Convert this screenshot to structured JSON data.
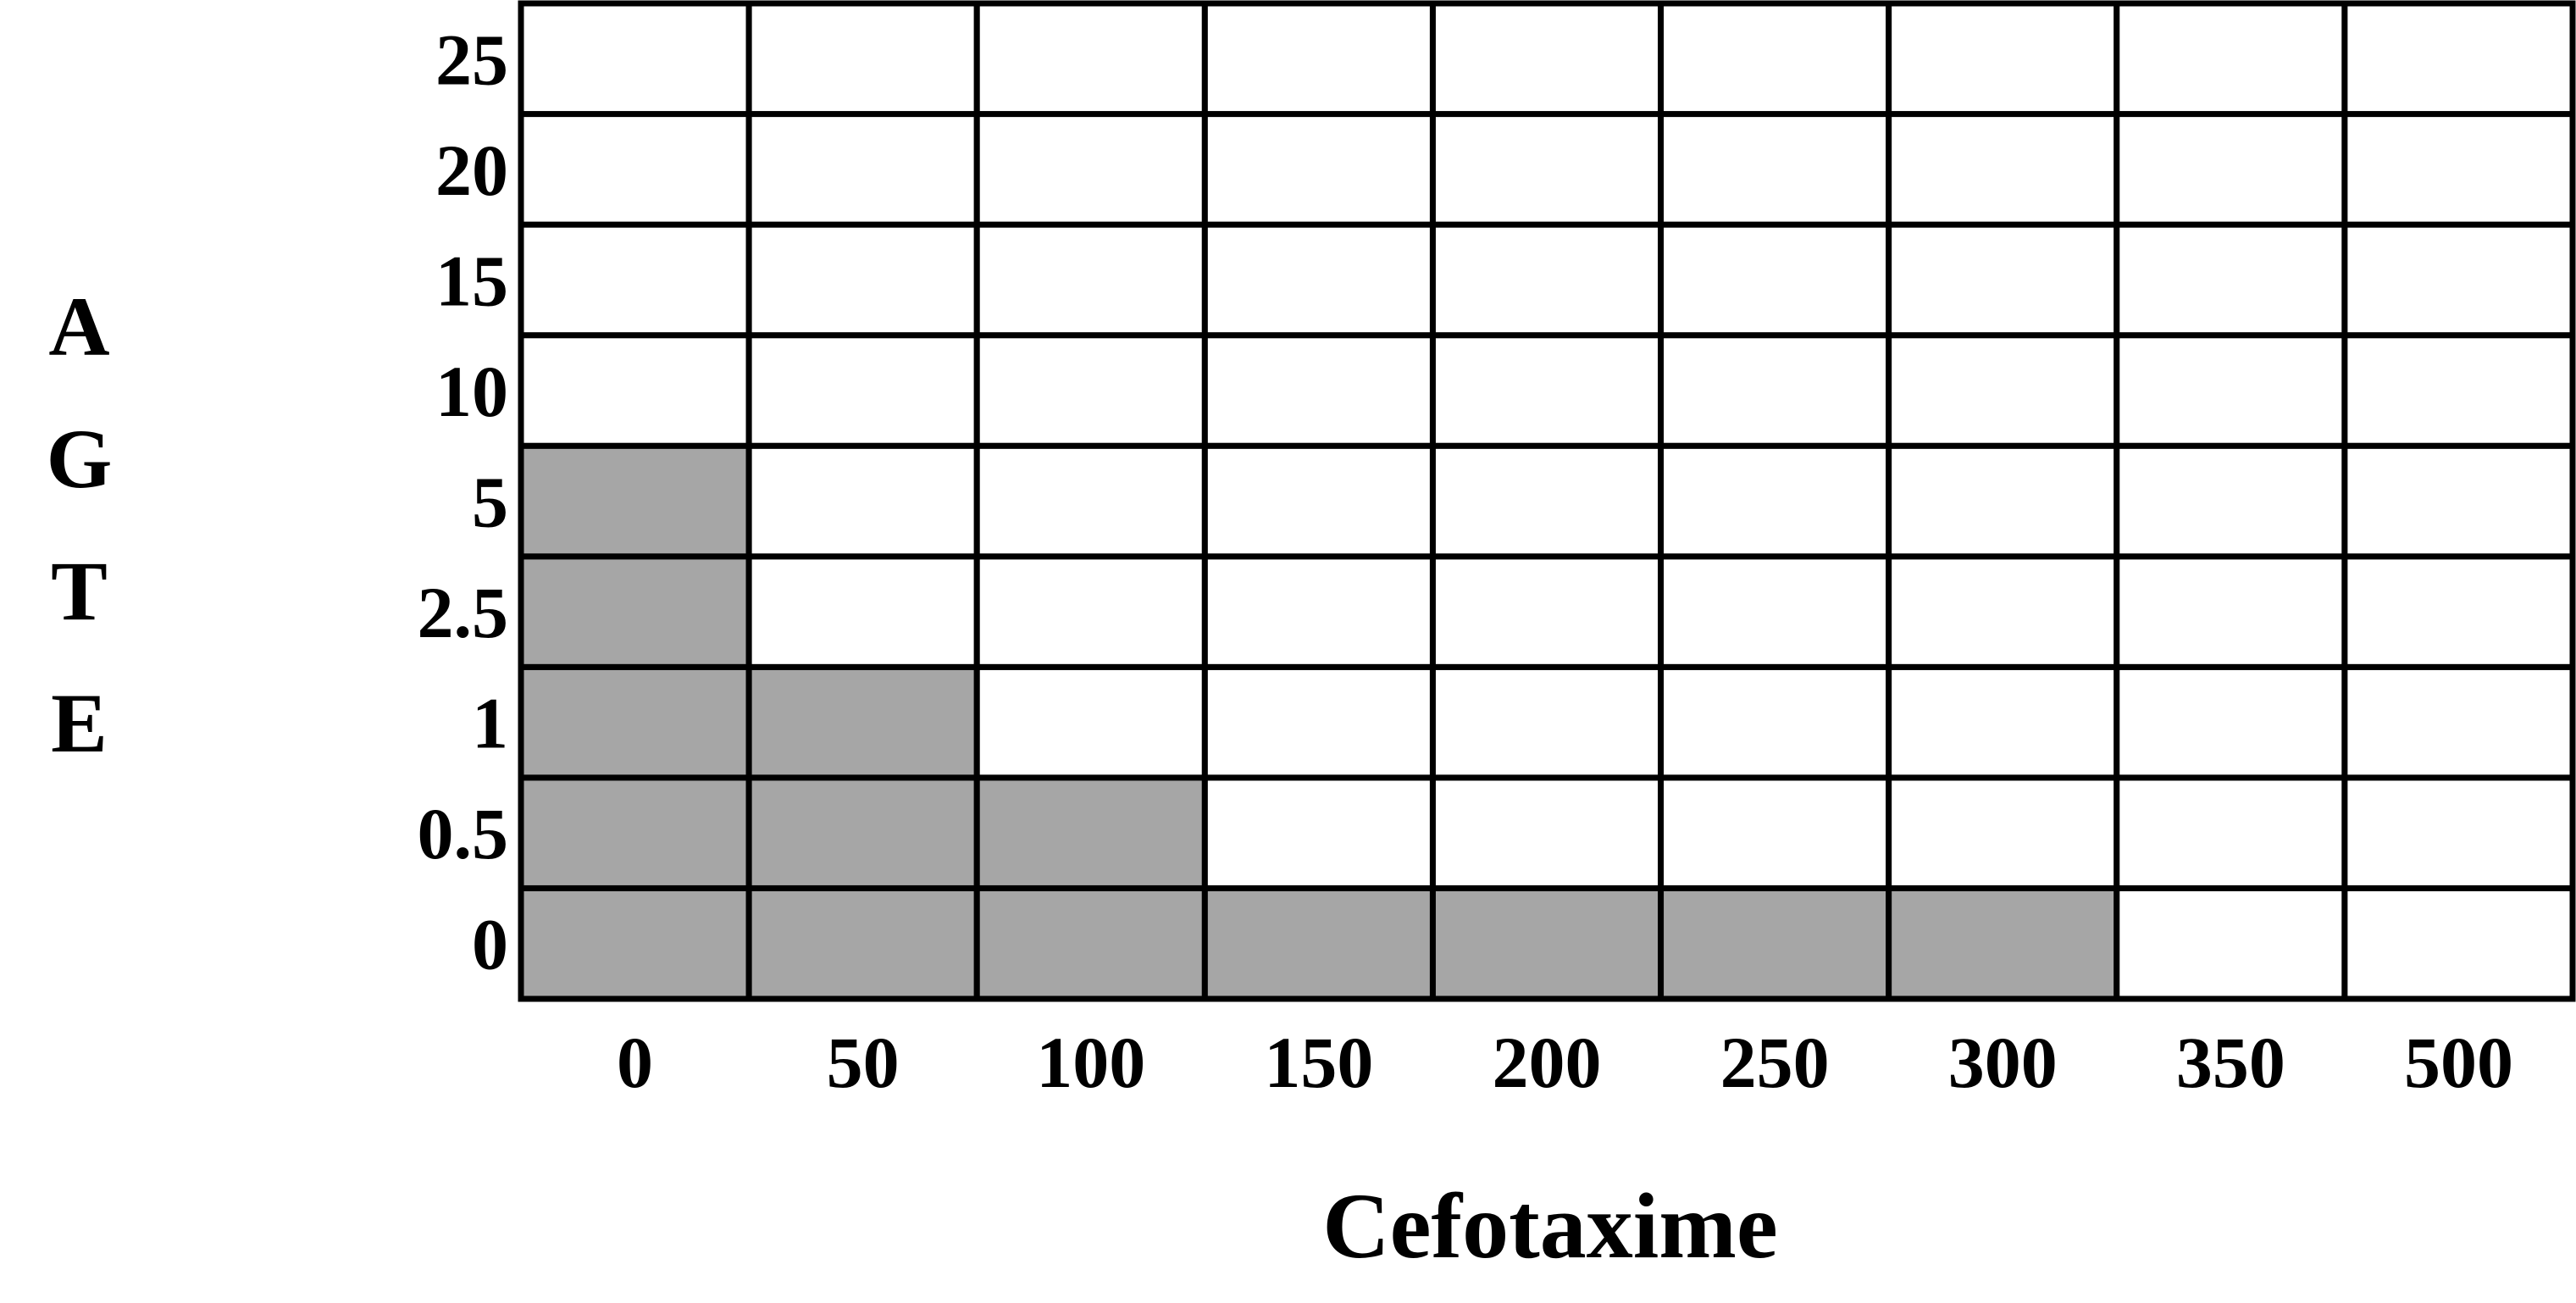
{
  "chart_data": {
    "type": "heatmap",
    "title": "",
    "xlabel": "Cefotaxime",
    "ylabel": "AGTE",
    "ylabel_letters": [
      "A",
      "G",
      "T",
      "E"
    ],
    "x_categories": [
      "0",
      "50",
      "100",
      "150",
      "200",
      "250",
      "300",
      "350",
      "500"
    ],
    "y_categories": [
      "0",
      "0.5",
      "1",
      "2.5",
      "5",
      "10",
      "15",
      "20",
      "25"
    ],
    "values": [
      [
        1,
        1,
        1,
        1,
        1,
        1,
        1,
        0,
        0
      ],
      [
        1,
        1,
        1,
        0,
        0,
        0,
        0,
        0,
        0
      ],
      [
        1,
        1,
        0,
        0,
        0,
        0,
        0,
        0,
        0
      ],
      [
        1,
        0,
        0,
        0,
        0,
        0,
        0,
        0,
        0
      ],
      [
        1,
        0,
        0,
        0,
        0,
        0,
        0,
        0,
        0
      ],
      [
        0,
        0,
        0,
        0,
        0,
        0,
        0,
        0,
        0
      ],
      [
        0,
        0,
        0,
        0,
        0,
        0,
        0,
        0,
        0
      ],
      [
        0,
        0,
        0,
        0,
        0,
        0,
        0,
        0,
        0
      ],
      [
        0,
        0,
        0,
        0,
        0,
        0,
        0,
        0,
        0
      ]
    ],
    "values_note": "rows follow y_categories bottom-to-top; 1 = shaded (grey), 0 = white",
    "colors": {
      "shaded": "#a6a6a6",
      "empty": "#ffffff",
      "grid": "#000000"
    },
    "grid": true,
    "legend": "none"
  }
}
